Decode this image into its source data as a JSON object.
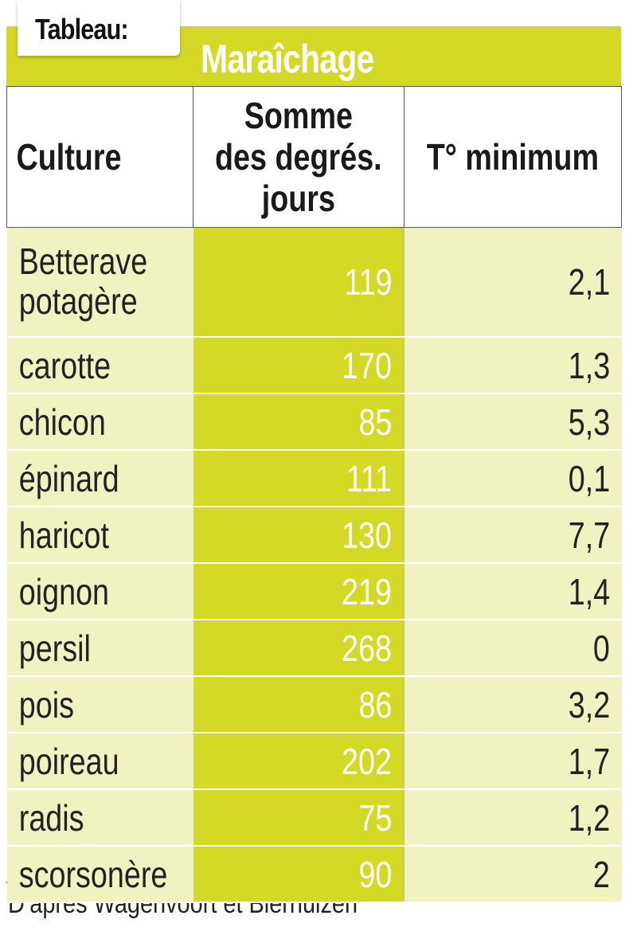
{
  "tab_label": "Tableau:",
  "title": "Maraîchage",
  "headers": {
    "culture": "Culture",
    "somme_line1": "Somme",
    "somme_line2": "des degrés.",
    "somme_line3": "jours",
    "t_min": "T° minimum"
  },
  "rows": [
    {
      "culture_line1": "Betterave",
      "culture_line2": "potagère",
      "somme": "119",
      "t_min": "2,1"
    },
    {
      "culture": "carotte",
      "somme": "170",
      "t_min": "1,3"
    },
    {
      "culture": "chicon",
      "somme": "85",
      "t_min": "5,3"
    },
    {
      "culture": "épinard",
      "somme": "111",
      "t_min": "0,1"
    },
    {
      "culture": "haricot",
      "somme": "130",
      "t_min": "7,7"
    },
    {
      "culture": "oignon",
      "somme": "219",
      "t_min": "1,4"
    },
    {
      "culture": "persil",
      "somme": "268",
      "t_min": "0"
    },
    {
      "culture": "pois",
      "somme": "86",
      "t_min": "3,2"
    },
    {
      "culture": "poireau",
      "somme": "202",
      "t_min": "1,7"
    },
    {
      "culture": "radis",
      "somme": "75",
      "t_min": "1,2"
    },
    {
      "culture": "scorsonère",
      "somme": "90",
      "t_min": "2"
    }
  ],
  "source": "D’après Wagenvoort et Bierhuizen",
  "colors": {
    "accent": "#d3d924",
    "row_bg": "#f0f2c2"
  }
}
